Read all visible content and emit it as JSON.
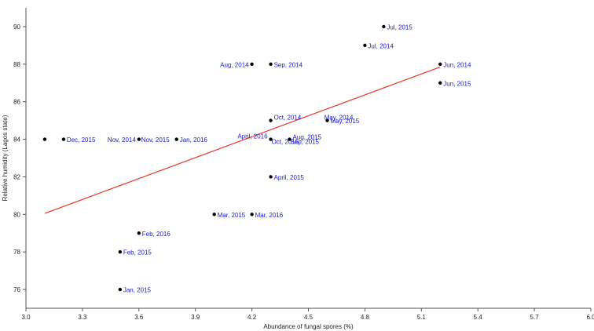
{
  "chart_data": {
    "type": "scatter",
    "xlabel": "Abundance of fungal spores (%)",
    "ylabel": "Relative humidity (Lagos state)",
    "xlim": [
      3.0,
      6.0
    ],
    "ylim": [
      75,
      91
    ],
    "x_ticks": [
      "3.0",
      "3.3",
      "3.6",
      "3.9",
      "4.2",
      "4.5",
      "4.8",
      "5.1",
      "5.4",
      "5.7",
      "6.0"
    ],
    "y_ticks": [
      "76",
      "78",
      "80",
      "82",
      "84",
      "86",
      "88",
      "90"
    ],
    "grid": false,
    "legend": "none",
    "colors": {
      "point": "#000000",
      "label": "#1a1acc",
      "trendline": "#e8322a",
      "axis": "#555555"
    },
    "points": [
      {
        "x": 3.1,
        "y": 84,
        "label": ""
      },
      {
        "x": 3.2,
        "y": 84,
        "label": "Dec, 2015"
      },
      {
        "x": 3.6,
        "y": 84,
        "label": "Nov, 2014"
      },
      {
        "x": 3.6,
        "y": 84,
        "label": "Nov, 2015"
      },
      {
        "x": 3.8,
        "y": 84,
        "label": "Jan, 2016"
      },
      {
        "x": 3.5,
        "y": 76,
        "label": "Jan, 2015"
      },
      {
        "x": 3.5,
        "y": 78,
        "label": "Feb, 2015"
      },
      {
        "x": 3.6,
        "y": 79,
        "label": "Feb, 2016"
      },
      {
        "x": 4.0,
        "y": 80,
        "label": "Mar, 2015"
      },
      {
        "x": 4.2,
        "y": 80,
        "label": "Mar, 2016"
      },
      {
        "x": 4.3,
        "y": 82,
        "label": "April, 2015"
      },
      {
        "x": 4.3,
        "y": 84,
        "label": "April, 2016"
      },
      {
        "x": 4.3,
        "y": 84,
        "label": "Oct, 2015"
      },
      {
        "x": 4.4,
        "y": 84,
        "label": "Aug, 2015"
      },
      {
        "x": 4.4,
        "y": 84,
        "label": "Sep, 2015"
      },
      {
        "x": 4.3,
        "y": 85,
        "label": "Oct, 2014"
      },
      {
        "x": 4.6,
        "y": 85,
        "label": "May, 2014"
      },
      {
        "x": 4.6,
        "y": 85,
        "label": "May, 2015"
      },
      {
        "x": 4.2,
        "y": 88,
        "label": "Aug, 2014"
      },
      {
        "x": 4.3,
        "y": 88,
        "label": "Sep, 2014"
      },
      {
        "x": 4.8,
        "y": 89,
        "label": "Jul, 2014"
      },
      {
        "x": 4.9,
        "y": 90,
        "label": "Jul, 2015"
      },
      {
        "x": 5.2,
        "y": 88,
        "label": "Jun, 2014"
      },
      {
        "x": 5.2,
        "y": 87,
        "label": "Jun, 2015"
      }
    ],
    "trendline": {
      "x": [
        3.1,
        5.2
      ],
      "y": [
        80.05,
        87.85
      ]
    }
  }
}
